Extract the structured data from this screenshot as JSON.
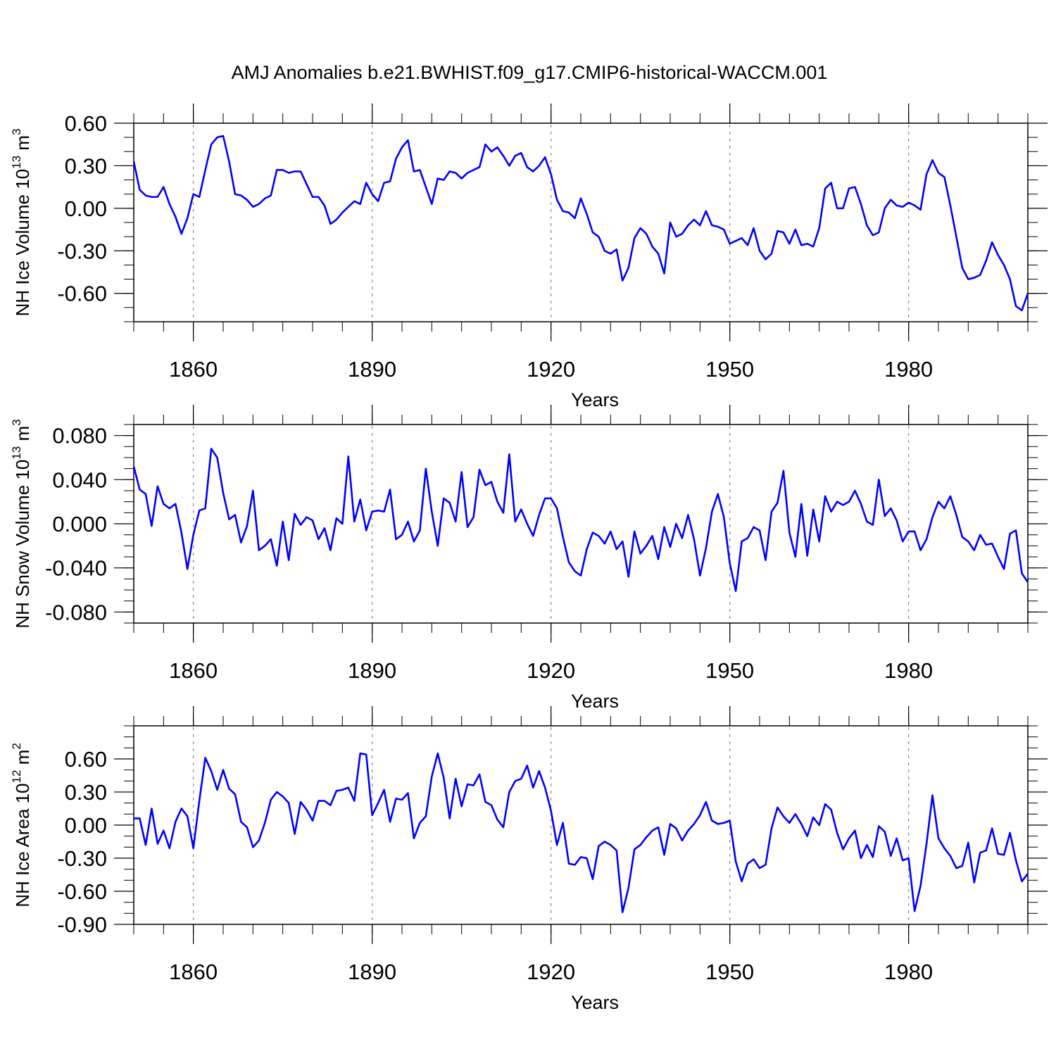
{
  "title": "AMJ Anomalies b.e21.BWHIST.f09_g17.CMIP6-historical-WACCM.001",
  "line_color": "#0000ff",
  "chart_data": [
    {
      "type": "line",
      "ylabel_prefix": "NH Ice Volume 10",
      "ylabel_exp": "13",
      "ylabel_unit": "m",
      "ylabel_unit_exp": "3",
      "xlabel": "Years",
      "xlim": [
        1850,
        2000
      ],
      "ylim": [
        -0.8,
        0.6
      ],
      "yticks": [
        0.6,
        0.3,
        0.0,
        -0.3,
        -0.6
      ],
      "yticklabels": [
        "0.60",
        "0.30",
        "0.00",
        "-0.30",
        "-0.60"
      ],
      "yminor": 0.1,
      "xticks": [
        1860,
        1890,
        1920,
        1950,
        1980
      ],
      "xticklabels": [
        "1860",
        "1890",
        "1920",
        "1950",
        "1980"
      ],
      "x_start": 1850,
      "values": [
        0.33,
        0.13,
        0.09,
        0.08,
        0.08,
        0.15,
        0.03,
        -0.06,
        -0.18,
        -0.07,
        0.1,
        0.08,
        0.27,
        0.45,
        0.5,
        0.51,
        0.33,
        0.1,
        0.09,
        0.06,
        0.01,
        0.03,
        0.07,
        0.09,
        0.27,
        0.27,
        0.25,
        0.26,
        0.26,
        0.17,
        0.08,
        0.08,
        0.02,
        -0.11,
        -0.08,
        -0.03,
        0.01,
        0.05,
        0.03,
        0.18,
        0.1,
        0.05,
        0.18,
        0.19,
        0.35,
        0.43,
        0.48,
        0.26,
        0.27,
        0.15,
        0.03,
        0.21,
        0.2,
        0.26,
        0.25,
        0.21,
        0.25,
        0.27,
        0.29,
        0.45,
        0.4,
        0.43,
        0.37,
        0.3,
        0.37,
        0.39,
        0.29,
        0.26,
        0.3,
        0.36,
        0.24,
        0.06,
        -0.02,
        -0.03,
        -0.07,
        0.07,
        -0.04,
        -0.17,
        -0.2,
        -0.3,
        -0.32,
        -0.29,
        -0.51,
        -0.42,
        -0.21,
        -0.14,
        -0.18,
        -0.27,
        -0.32,
        -0.46,
        -0.1,
        -0.2,
        -0.18,
        -0.12,
        -0.08,
        -0.12,
        -0.02,
        -0.12,
        -0.13,
        -0.15,
        -0.25,
        -0.23,
        -0.21,
        -0.26,
        -0.14,
        -0.3,
        -0.36,
        -0.32,
        -0.16,
        -0.17,
        -0.25,
        -0.15,
        -0.26,
        -0.25,
        -0.27,
        -0.14,
        0.14,
        0.18,
        0.0,
        0.0,
        0.14,
        0.15,
        0.03,
        -0.12,
        -0.19,
        -0.17,
        0.0,
        0.06,
        0.02,
        0.01,
        0.04,
        0.02,
        -0.01,
        0.24,
        0.34,
        0.25,
        0.22,
        0.02,
        -0.2,
        -0.42,
        -0.5,
        -0.49,
        -0.47,
        -0.37,
        -0.24,
        -0.33,
        -0.4,
        -0.5,
        -0.69,
        -0.72,
        -0.6
      ]
    },
    {
      "type": "line",
      "ylabel_prefix": "NH Snow Volume 10",
      "ylabel_exp": "13",
      "ylabel_unit": "m",
      "ylabel_unit_exp": "3",
      "xlabel": "Years",
      "xlim": [
        1850,
        2000
      ],
      "ylim": [
        -0.09,
        0.09
      ],
      "yticks": [
        0.08,
        0.04,
        0.0,
        -0.04,
        -0.08
      ],
      "yticklabels": [
        "0.080",
        "0.040",
        "0.000",
        "-0.040",
        "-0.080"
      ],
      "yminor": 0.01,
      "xticks": [
        1860,
        1890,
        1920,
        1950,
        1980
      ],
      "xticklabels": [
        "1860",
        "1890",
        "1920",
        "1950",
        "1980"
      ],
      "x_start": 1850,
      "values": [
        0.052,
        0.031,
        0.027,
        -0.002,
        0.034,
        0.018,
        0.014,
        0.018,
        -0.008,
        -0.041,
        -0.01,
        0.012,
        0.014,
        0.068,
        0.06,
        0.028,
        0.004,
        0.008,
        -0.017,
        -0.002,
        0.03,
        -0.024,
        -0.02,
        -0.014,
        -0.038,
        0.002,
        -0.033,
        0.009,
        -0.001,
        0.006,
        0.003,
        -0.014,
        -0.004,
        -0.024,
        0.005,
        0.0,
        0.061,
        0.002,
        0.022,
        -0.006,
        0.011,
        0.012,
        0.011,
        0.031,
        -0.014,
        -0.01,
        0.002,
        -0.016,
        -0.006,
        0.05,
        0.011,
        -0.02,
        0.023,
        0.019,
        0.002,
        0.047,
        -0.003,
        0.006,
        0.049,
        0.035,
        0.038,
        0.02,
        0.01,
        0.063,
        0.002,
        0.013,
        0.0,
        -0.011,
        0.008,
        0.023,
        0.023,
        0.014,
        -0.012,
        -0.035,
        -0.043,
        -0.047,
        -0.023,
        -0.008,
        -0.011,
        -0.018,
        -0.007,
        -0.023,
        -0.016,
        -0.048,
        -0.007,
        -0.027,
        -0.02,
        -0.011,
        -0.032,
        -0.003,
        -0.021,
        0.0,
        -0.013,
        0.008,
        -0.014,
        -0.047,
        -0.022,
        0.011,
        0.027,
        0.006,
        -0.036,
        -0.061,
        -0.016,
        -0.013,
        -0.003,
        -0.006,
        -0.033,
        0.011,
        0.019,
        0.048,
        -0.008,
        -0.03,
        0.018,
        -0.029,
        0.013,
        -0.016,
        0.025,
        0.011,
        0.02,
        0.017,
        0.02,
        0.03,
        0.018,
        0.002,
        -0.001,
        0.04,
        0.007,
        0.014,
        0.003,
        -0.016,
        -0.007,
        -0.007,
        -0.024,
        -0.014,
        0.006,
        0.02,
        0.014,
        0.025,
        0.008,
        -0.012,
        -0.016,
        -0.024,
        -0.01,
        -0.019,
        -0.018,
        -0.03,
        -0.041,
        -0.009,
        -0.006,
        -0.045,
        -0.053
      ]
    },
    {
      "type": "line",
      "ylabel_prefix": "NH Ice Area 10",
      "ylabel_exp": "12",
      "ylabel_unit": "m",
      "ylabel_unit_exp": "2",
      "xlabel": "Years",
      "xlim": [
        1850,
        2000
      ],
      "ylim": [
        -0.9,
        0.9
      ],
      "yticks": [
        0.6,
        0.3,
        0.0,
        -0.3,
        -0.6,
        -0.9
      ],
      "yticklabels": [
        "0.60",
        "0.30",
        "0.00",
        "-0.30",
        "-0.60",
        "-0.90"
      ],
      "yminor": 0.1,
      "xticks": [
        1860,
        1890,
        1920,
        1950,
        1980
      ],
      "xticklabels": [
        "1860",
        "1890",
        "1920",
        "1950",
        "1980"
      ],
      "x_start": 1850,
      "values": [
        0.06,
        0.06,
        -0.18,
        0.15,
        -0.17,
        -0.05,
        -0.21,
        0.03,
        0.15,
        0.08,
        -0.21,
        0.22,
        0.61,
        0.49,
        0.32,
        0.5,
        0.33,
        0.28,
        0.03,
        -0.02,
        -0.2,
        -0.14,
        0.02,
        0.23,
        0.3,
        0.26,
        0.2,
        -0.08,
        0.21,
        0.14,
        0.04,
        0.22,
        0.22,
        0.18,
        0.31,
        0.32,
        0.34,
        0.22,
        0.65,
        0.64,
        0.09,
        0.2,
        0.32,
        0.03,
        0.24,
        0.23,
        0.29,
        -0.12,
        0.02,
        0.08,
        0.44,
        0.65,
        0.43,
        0.06,
        0.42,
        0.17,
        0.37,
        0.36,
        0.46,
        0.21,
        0.18,
        0.05,
        -0.02,
        0.3,
        0.4,
        0.42,
        0.54,
        0.34,
        0.49,
        0.34,
        0.13,
        -0.18,
        0.02,
        -0.35,
        -0.36,
        -0.29,
        -0.3,
        -0.49,
        -0.19,
        -0.15,
        -0.18,
        -0.23,
        -0.79,
        -0.57,
        -0.22,
        -0.18,
        -0.11,
        -0.05,
        -0.02,
        -0.27,
        0.01,
        -0.03,
        -0.14,
        -0.05,
        0.01,
        0.09,
        0.21,
        0.04,
        0.01,
        0.02,
        0.04,
        -0.33,
        -0.51,
        -0.35,
        -0.31,
        -0.39,
        -0.36,
        -0.03,
        0.16,
        0.08,
        0.02,
        0.1,
        0.01,
        -0.1,
        0.07,
        0.0,
        0.19,
        0.14,
        -0.07,
        -0.22,
        -0.12,
        -0.05,
        -0.3,
        -0.18,
        -0.29,
        -0.01,
        -0.06,
        -0.28,
        -0.12,
        -0.32,
        -0.3,
        -0.78,
        -0.55,
        -0.17,
        0.27,
        -0.12,
        -0.21,
        -0.28,
        -0.39,
        -0.37,
        -0.16,
        -0.52,
        -0.25,
        -0.23,
        -0.03,
        -0.26,
        -0.27,
        -0.07,
        -0.32,
        -0.51,
        -0.44
      ]
    }
  ]
}
